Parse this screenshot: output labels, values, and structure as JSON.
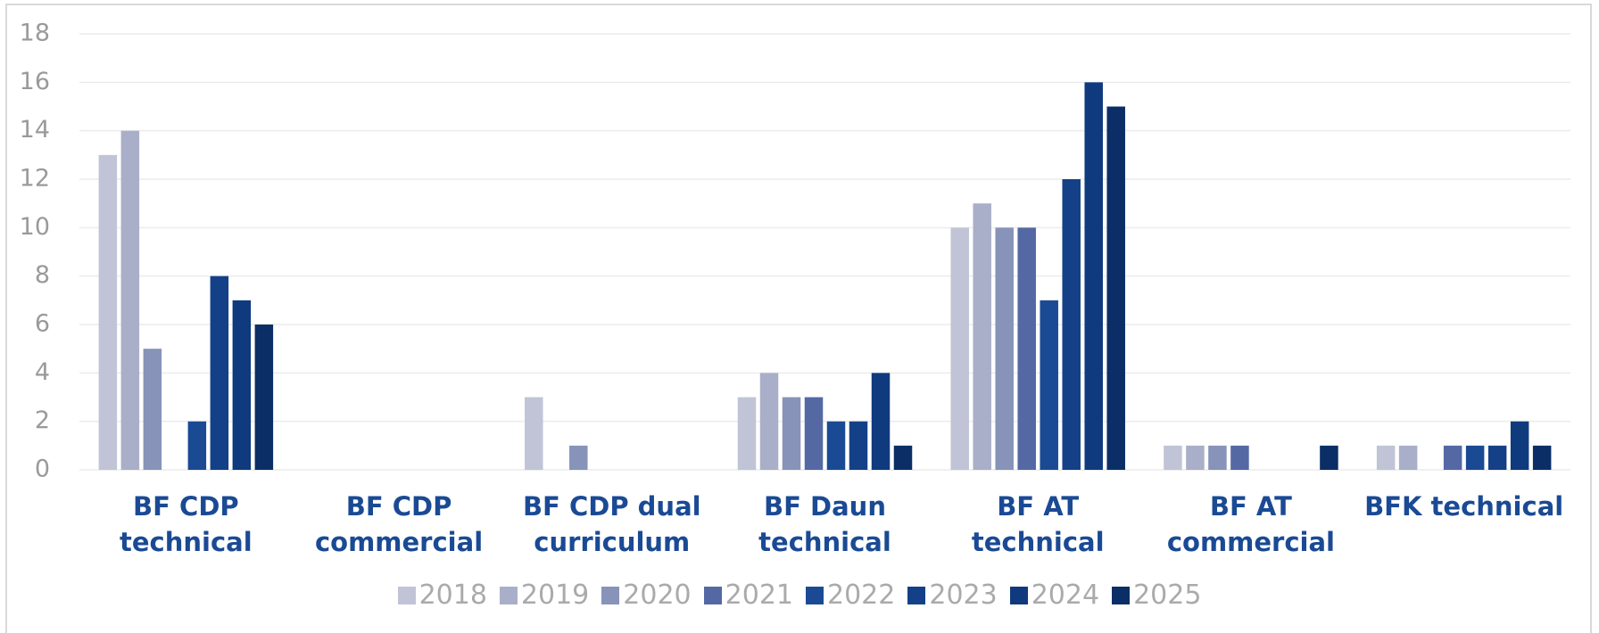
{
  "chart_data": {
    "type": "bar",
    "categories": [
      "BF CDP technical",
      "BF CDP commercial",
      "BF CDP dual curriculum",
      "BF Daun technical",
      "BF AT technical",
      "BF AT commercial",
      "BFK technical"
    ],
    "series": [
      {
        "name": "2018",
        "color": "#c0c4d6",
        "values": [
          13,
          null,
          3,
          3,
          10,
          1,
          1
        ]
      },
      {
        "name": "2019",
        "color": "#a9afc8",
        "values": [
          14,
          null,
          null,
          4,
          11,
          1,
          1
        ]
      },
      {
        "name": "2020",
        "color": "#8793b8",
        "values": [
          5,
          null,
          1,
          3,
          10,
          1,
          null
        ]
      },
      {
        "name": "2021",
        "color": "#5468a4",
        "values": [
          null,
          null,
          null,
          3,
          10,
          1,
          1
        ]
      },
      {
        "name": "2022",
        "color": "#1a4a94",
        "values": [
          2,
          null,
          null,
          2,
          7,
          null,
          1
        ]
      },
      {
        "name": "2023",
        "color": "#144088",
        "values": [
          8,
          null,
          null,
          2,
          12,
          null,
          1
        ]
      },
      {
        "name": "2024",
        "color": "#0f3a7e",
        "values": [
          7,
          null,
          null,
          4,
          16,
          null,
          2
        ]
      },
      {
        "name": "2025",
        "color": "#0b2e66",
        "values": [
          6,
          null,
          null,
          1,
          15,
          1,
          1
        ]
      }
    ],
    "ylim": [
      0,
      18
    ],
    "yticks": [
      0,
      2,
      4,
      6,
      8,
      10,
      12,
      14,
      16,
      18
    ],
    "grid": true,
    "legend": "bottom"
  }
}
